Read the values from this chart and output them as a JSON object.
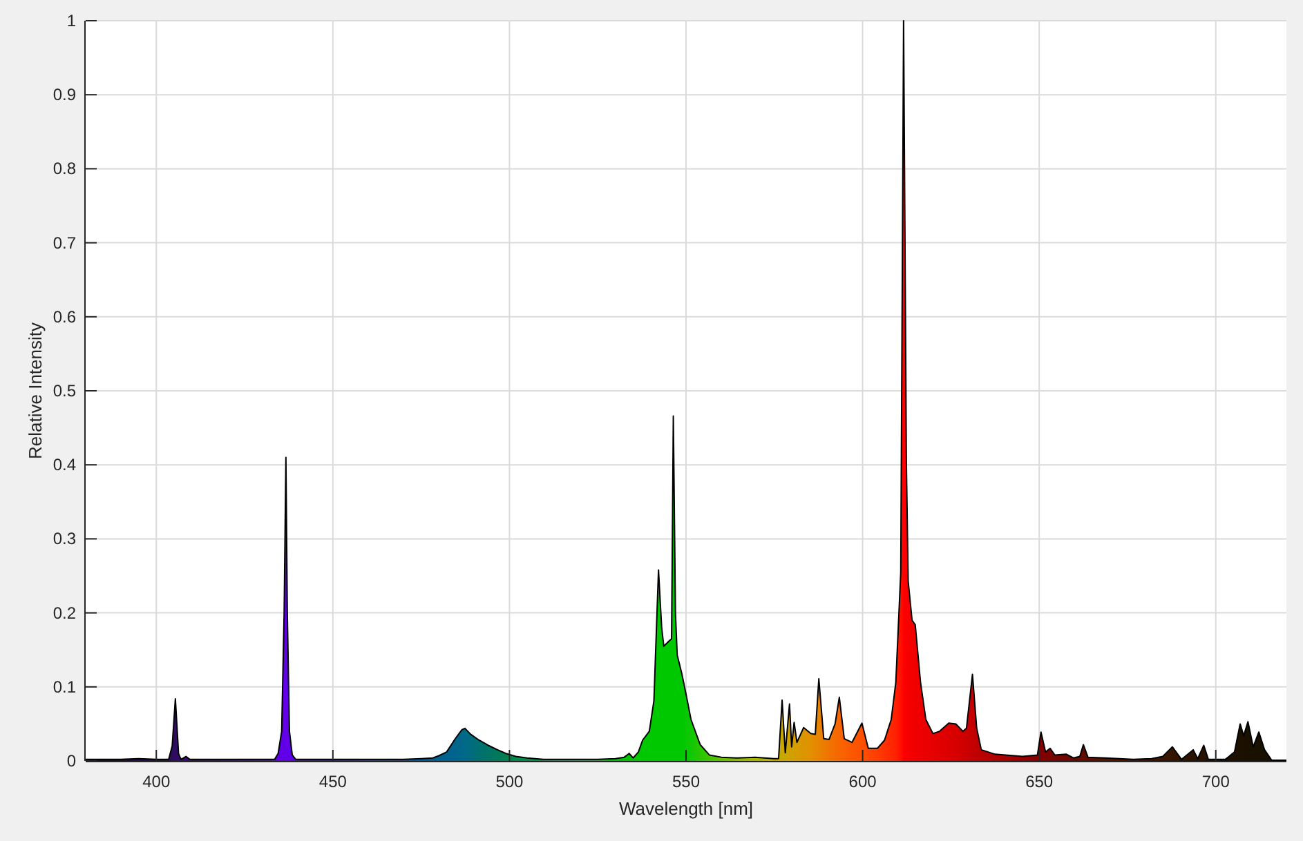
{
  "chart_data": {
    "type": "area",
    "xlabel": "Wavelength [nm]",
    "ylabel": "Relative Intensity",
    "xlim": [
      380,
      720
    ],
    "ylim": [
      0,
      1
    ],
    "xticks": [
      400,
      450,
      500,
      550,
      600,
      650,
      700
    ],
    "yticks": [
      0,
      0.1,
      0.2,
      0.3,
      0.4,
      0.5,
      0.6,
      0.7,
      0.8,
      0.9,
      1
    ],
    "grid": true,
    "color": "#000000",
    "x": [
      380,
      385,
      390,
      395,
      400,
      403.5,
      404.5,
      405.4,
      406.3,
      407,
      408.4,
      409.5,
      415,
      420,
      425,
      430,
      433.5,
      434.5,
      435.5,
      436.2,
      436.7,
      437.1,
      437.7,
      438.5,
      439.5,
      445,
      450,
      455,
      460,
      465,
      470,
      475,
      478.3,
      480,
      482.2,
      484.8,
      486.5,
      487.4,
      489,
      491.4,
      494,
      496.6,
      499,
      501.8,
      505,
      509.6,
      515,
      520,
      525,
      530,
      532.5,
      533.9,
      535,
      536.5,
      537.7,
      539.6,
      540.9,
      542.2,
      543.1,
      543.7,
      545.2,
      545.9,
      546.4,
      547,
      547.5,
      548.8,
      550,
      551.4,
      554,
      556.6,
      560,
      564.4,
      569.6,
      574.9,
      576.2,
      577.2,
      578.1,
      579.3,
      579.9,
      580.6,
      581.4,
      583.3,
      585.3,
      586.6,
      587.6,
      589,
      590.5,
      592.2,
      593.4,
      594.8,
      597,
      599.8,
      601.6,
      604.2,
      606.2,
      608.1,
      609.4,
      610.8,
      611.6,
      612.4,
      612.9,
      614,
      614.9,
      616.4,
      617.9,
      619.9,
      621.8,
      624.4,
      626.4,
      628.4,
      629.4,
      631.1,
      632.3,
      633.6,
      637.5,
      645.3,
      649.5,
      650.5,
      651.8,
      653.1,
      654.4,
      657.7,
      659.7,
      661.5,
      662.5,
      663.8,
      668.8,
      676.6,
      681.8,
      685,
      687.7,
      690.3,
      693.6,
      694.9,
      696.6,
      697.9,
      702.7,
      705.3,
      706.9,
      707.9,
      709.1,
      710.6,
      712.2,
      713.8,
      715.8,
      720
    ],
    "values": [
      0.002,
      0.002,
      0.002,
      0.003,
      0.002,
      0.002,
      0.02,
      0.084,
      0.01,
      0.002,
      0.006,
      0.002,
      0.002,
      0.002,
      0.002,
      0.002,
      0.002,
      0.01,
      0.04,
      0.2,
      0.41,
      0.2,
      0.04,
      0.008,
      0.002,
      0.002,
      0.002,
      0.002,
      0.002,
      0.002,
      0.002,
      0.003,
      0.004,
      0.007,
      0.012,
      0.031,
      0.042,
      0.044,
      0.036,
      0.028,
      0.021,
      0.015,
      0.01,
      0.006,
      0.004,
      0.002,
      0.002,
      0.002,
      0.002,
      0.003,
      0.005,
      0.01,
      0.004,
      0.012,
      0.028,
      0.04,
      0.081,
      0.258,
      0.18,
      0.155,
      0.162,
      0.165,
      0.466,
      0.2,
      0.143,
      0.118,
      0.09,
      0.056,
      0.022,
      0.008,
      0.005,
      0.004,
      0.005,
      0.003,
      0.003,
      0.082,
      0.011,
      0.077,
      0.019,
      0.052,
      0.025,
      0.045,
      0.037,
      0.036,
      0.111,
      0.03,
      0.029,
      0.05,
      0.086,
      0.03,
      0.025,
      0.051,
      0.017,
      0.017,
      0.028,
      0.056,
      0.106,
      0.255,
      1,
      0.4,
      0.243,
      0.19,
      0.184,
      0.106,
      0.056,
      0.037,
      0.04,
      0.051,
      0.05,
      0.04,
      0.044,
      0.117,
      0.044,
      0.015,
      0.009,
      0.006,
      0.008,
      0.039,
      0.012,
      0.017,
      0.008,
      0.009,
      0.004,
      0.006,
      0.022,
      0.005,
      0.004,
      0.002,
      0.003,
      0.006,
      0.019,
      0.002,
      0.015,
      0.003,
      0.021,
      0.002,
      0.002,
      0.012,
      0.05,
      0.034,
      0.053,
      0.019,
      0.039,
      0.015,
      0.001,
      0.001
    ],
    "colors": [
      "#1e0a30",
      "#200a34",
      "#220a3a",
      "#250b44",
      "#280b4c",
      "#2c0c58",
      "#2e0c5c",
      "#300c60",
      "#320c66",
      "#340c6a",
      "#360c70",
      "#380c76",
      "#3e0a90",
      "#4608a8",
      "#5004c0",
      "#5800d4",
      "#5c00dc",
      "#5e00e0",
      "#6000e4",
      "#6200e8",
      "#6200e8",
      "#6200e8",
      "#6000e6",
      "#5c00e2",
      "#5800e0",
      "#3c10d8",
      "#2020d0",
      "#1430c8",
      "#0840c0",
      "#0048b0",
      "#0050a0",
      "#005898",
      "#005e92",
      "#006090",
      "#00628e",
      "#00658c",
      "#00688a",
      "#006a88",
      "#006c80",
      "#007070",
      "#007466",
      "#00785c",
      "#008050",
      "#00884a",
      "#008c44",
      "#009838",
      "#00a830",
      "#00b428",
      "#00bc18",
      "#00c208",
      "#00c404",
      "#00c600",
      "#00c600",
      "#00c800",
      "#00c800",
      "#00c800",
      "#00c800",
      "#00c800",
      "#00c800",
      "#00c800",
      "#00c800",
      "#00c800",
      "#00c800",
      "#00c800",
      "#00c800",
      "#00c800",
      "#08c800",
      "#10c800",
      "#28c600",
      "#40c400",
      "#60c000",
      "#88bc00",
      "#a8b600",
      "#c0ae00",
      "#c4ac00",
      "#c8a800",
      "#cca600",
      "#d0a200",
      "#d2a000",
      "#d49e00",
      "#d69c00",
      "#dc9600",
      "#e29000",
      "#e68800",
      "#e88400",
      "#ec7c00",
      "#f07400",
      "#f46c00",
      "#f86600",
      "#fa6000",
      "#fc5800",
      "#ff5000",
      "#ff4800",
      "#ff3c00",
      "#ff3200",
      "#ff2800",
      "#ff2000",
      "#ff1000",
      "#ff0000",
      "#fa0000",
      "#f80000",
      "#f40000",
      "#f20000",
      "#ee0000",
      "#ea0000",
      "#e60000",
      "#e20000",
      "#dc0000",
      "#d60000",
      "#d00000",
      "#cc0000",
      "#c40000",
      "#c00000",
      "#bc0000",
      "#b00000",
      "#980000",
      "#860000",
      "#820000",
      "#7e0200",
      "#7a0400",
      "#760600",
      "#6c0800",
      "#660a00",
      "#620c00",
      "#600e00",
      "#5e0e00",
      "#561200",
      "#481400",
      "#3e1400",
      "#381400",
      "#341400",
      "#301200",
      "#2c1200",
      "#2a1200",
      "#281200",
      "#261100",
      "#201000",
      "#1e1000",
      "#1c1000",
      "#1c1000",
      "#1a1000",
      "#1a1000",
      "#181000",
      "#181000",
      "#161000",
      "#141000"
    ]
  }
}
